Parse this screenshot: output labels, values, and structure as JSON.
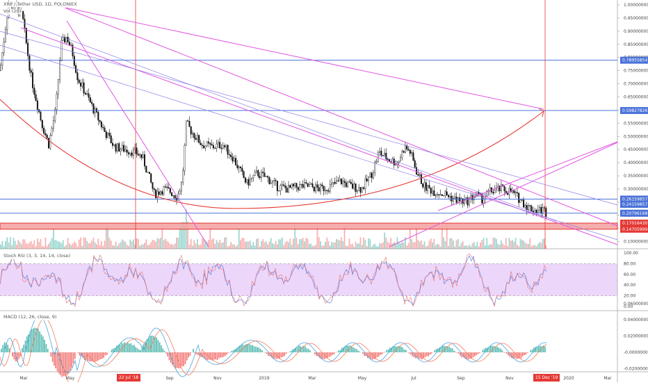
{
  "header": {
    "symbol": "XRP / Tether USD, 1D, POLONIEX",
    "volume_label": "Vol (20)"
  },
  "indicators": {
    "stoch_rsi": "Stoch RSI (3, 3, 14, 14, close)",
    "macd": "MACD (12, 26, close, 9)"
  },
  "colors": {
    "up": "#26a69a",
    "down": "#ef5350",
    "candle": "#111111",
    "blue_line": "#4a72d8",
    "pink_line": "#e055e0",
    "red_line": "#e53935",
    "stoch_fill": "#e6c8f7"
  },
  "price_axis": {
    "ticks": [
      "1.00000000",
      "0.95000000",
      "0.90000000",
      "0.85000000",
      "0.80000000",
      "0.75000000",
      "0.70000000",
      "0.65000000",
      "0.60000000",
      "0.55000000",
      "0.50000000",
      "0.45000000",
      "0.40000000",
      "0.35000000",
      "0.30000000",
      "0.25000000",
      "0.20000000",
      "0.15000000",
      "0.10000000"
    ],
    "highlight_tags": [
      {
        "label": "0.78955854",
        "price": 0.7896,
        "bg": "#4a72d8"
      },
      {
        "label": "0.59827826",
        "price": 0.5983,
        "bg": "#4a72d8"
      },
      {
        "label": "0.26159857",
        "price": 0.2616,
        "bg": "#4a72d8"
      },
      {
        "label": "0.24159857",
        "price": 0.2416,
        "bg": "#4a72d8"
      },
      {
        "label": "0.20796168",
        "price": 0.208,
        "bg": "#4a72d8"
      },
      {
        "label": "0.17016430",
        "price": 0.1702,
        "bg": "#e53935"
      },
      {
        "label": "0.14705999",
        "price": 0.1471,
        "bg": "#e53935"
      }
    ]
  },
  "stoch_axis": {
    "ticks": [
      "100.00",
      "80.00",
      "60.00",
      "40.00",
      "20.00",
      "0.00"
    ]
  },
  "macd_axis": {
    "ticks": [
      "0.06000000",
      "0.04000000",
      "0.02000000",
      "-0.00000000",
      "-0.02000000"
    ]
  },
  "time_axis": {
    "labels": [
      "Mar",
      "May",
      "Jul",
      "Sep",
      "Nov",
      "2019",
      "Mar",
      "May",
      "Jul",
      "Sep",
      "Nov",
      "2020",
      "Mar"
    ],
    "highlights": [
      "22 Jul '18",
      "15 Dec '19"
    ]
  }
}
